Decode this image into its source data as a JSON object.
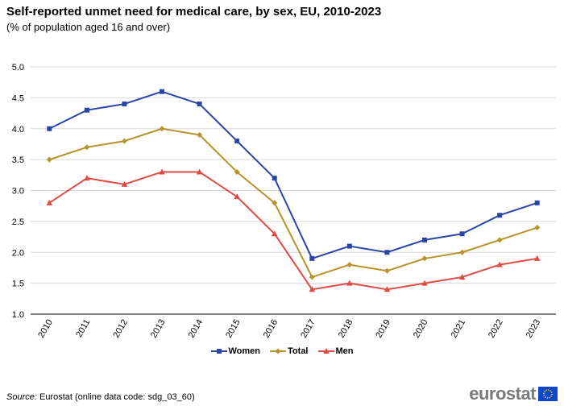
{
  "title": "Self-reported unmet need for medical care, by sex, EU, 2010-2023",
  "subtitle": "(% of population aged 16 and over)",
  "source_label": "Source:",
  "source_text": " Eurostat (online data code: sdg_03_60)",
  "logo_text": "eurostat",
  "chart_data": {
    "type": "line",
    "title": "Self-reported unmet need for medical care, by sex, EU, 2010-2023",
    "xlabel": "",
    "ylabel": "",
    "ylim": [
      1.0,
      5.0
    ],
    "yticks": [
      "1.0",
      "1.5",
      "2.0",
      "2.5",
      "3.0",
      "3.5",
      "4.0",
      "4.5",
      "5.0"
    ],
    "categories": [
      "2010",
      "2011",
      "2012",
      "2013",
      "2014",
      "2015",
      "2016",
      "2017",
      "2018",
      "2019",
      "2020",
      "2021",
      "2022",
      "2023"
    ],
    "series": [
      {
        "name": "Women",
        "color": "#2a45a6",
        "marker": "square",
        "values": [
          4.0,
          4.3,
          4.4,
          4.6,
          4.4,
          3.8,
          3.2,
          1.9,
          2.1,
          2.0,
          2.2,
          2.3,
          2.6,
          2.8
        ]
      },
      {
        "name": "Total",
        "color": "#b8922a",
        "marker": "diamond",
        "values": [
          3.5,
          3.7,
          3.8,
          4.0,
          3.9,
          3.3,
          2.8,
          1.6,
          1.8,
          1.7,
          1.9,
          2.0,
          2.2,
          2.4
        ]
      },
      {
        "name": "Men",
        "color": "#e04a44",
        "marker": "triangle",
        "values": [
          2.8,
          3.2,
          3.1,
          3.3,
          3.3,
          2.9,
          2.3,
          1.4,
          1.5,
          1.4,
          1.5,
          1.6,
          1.8,
          1.9
        ]
      }
    ],
    "legend_position": "bottom-center"
  }
}
